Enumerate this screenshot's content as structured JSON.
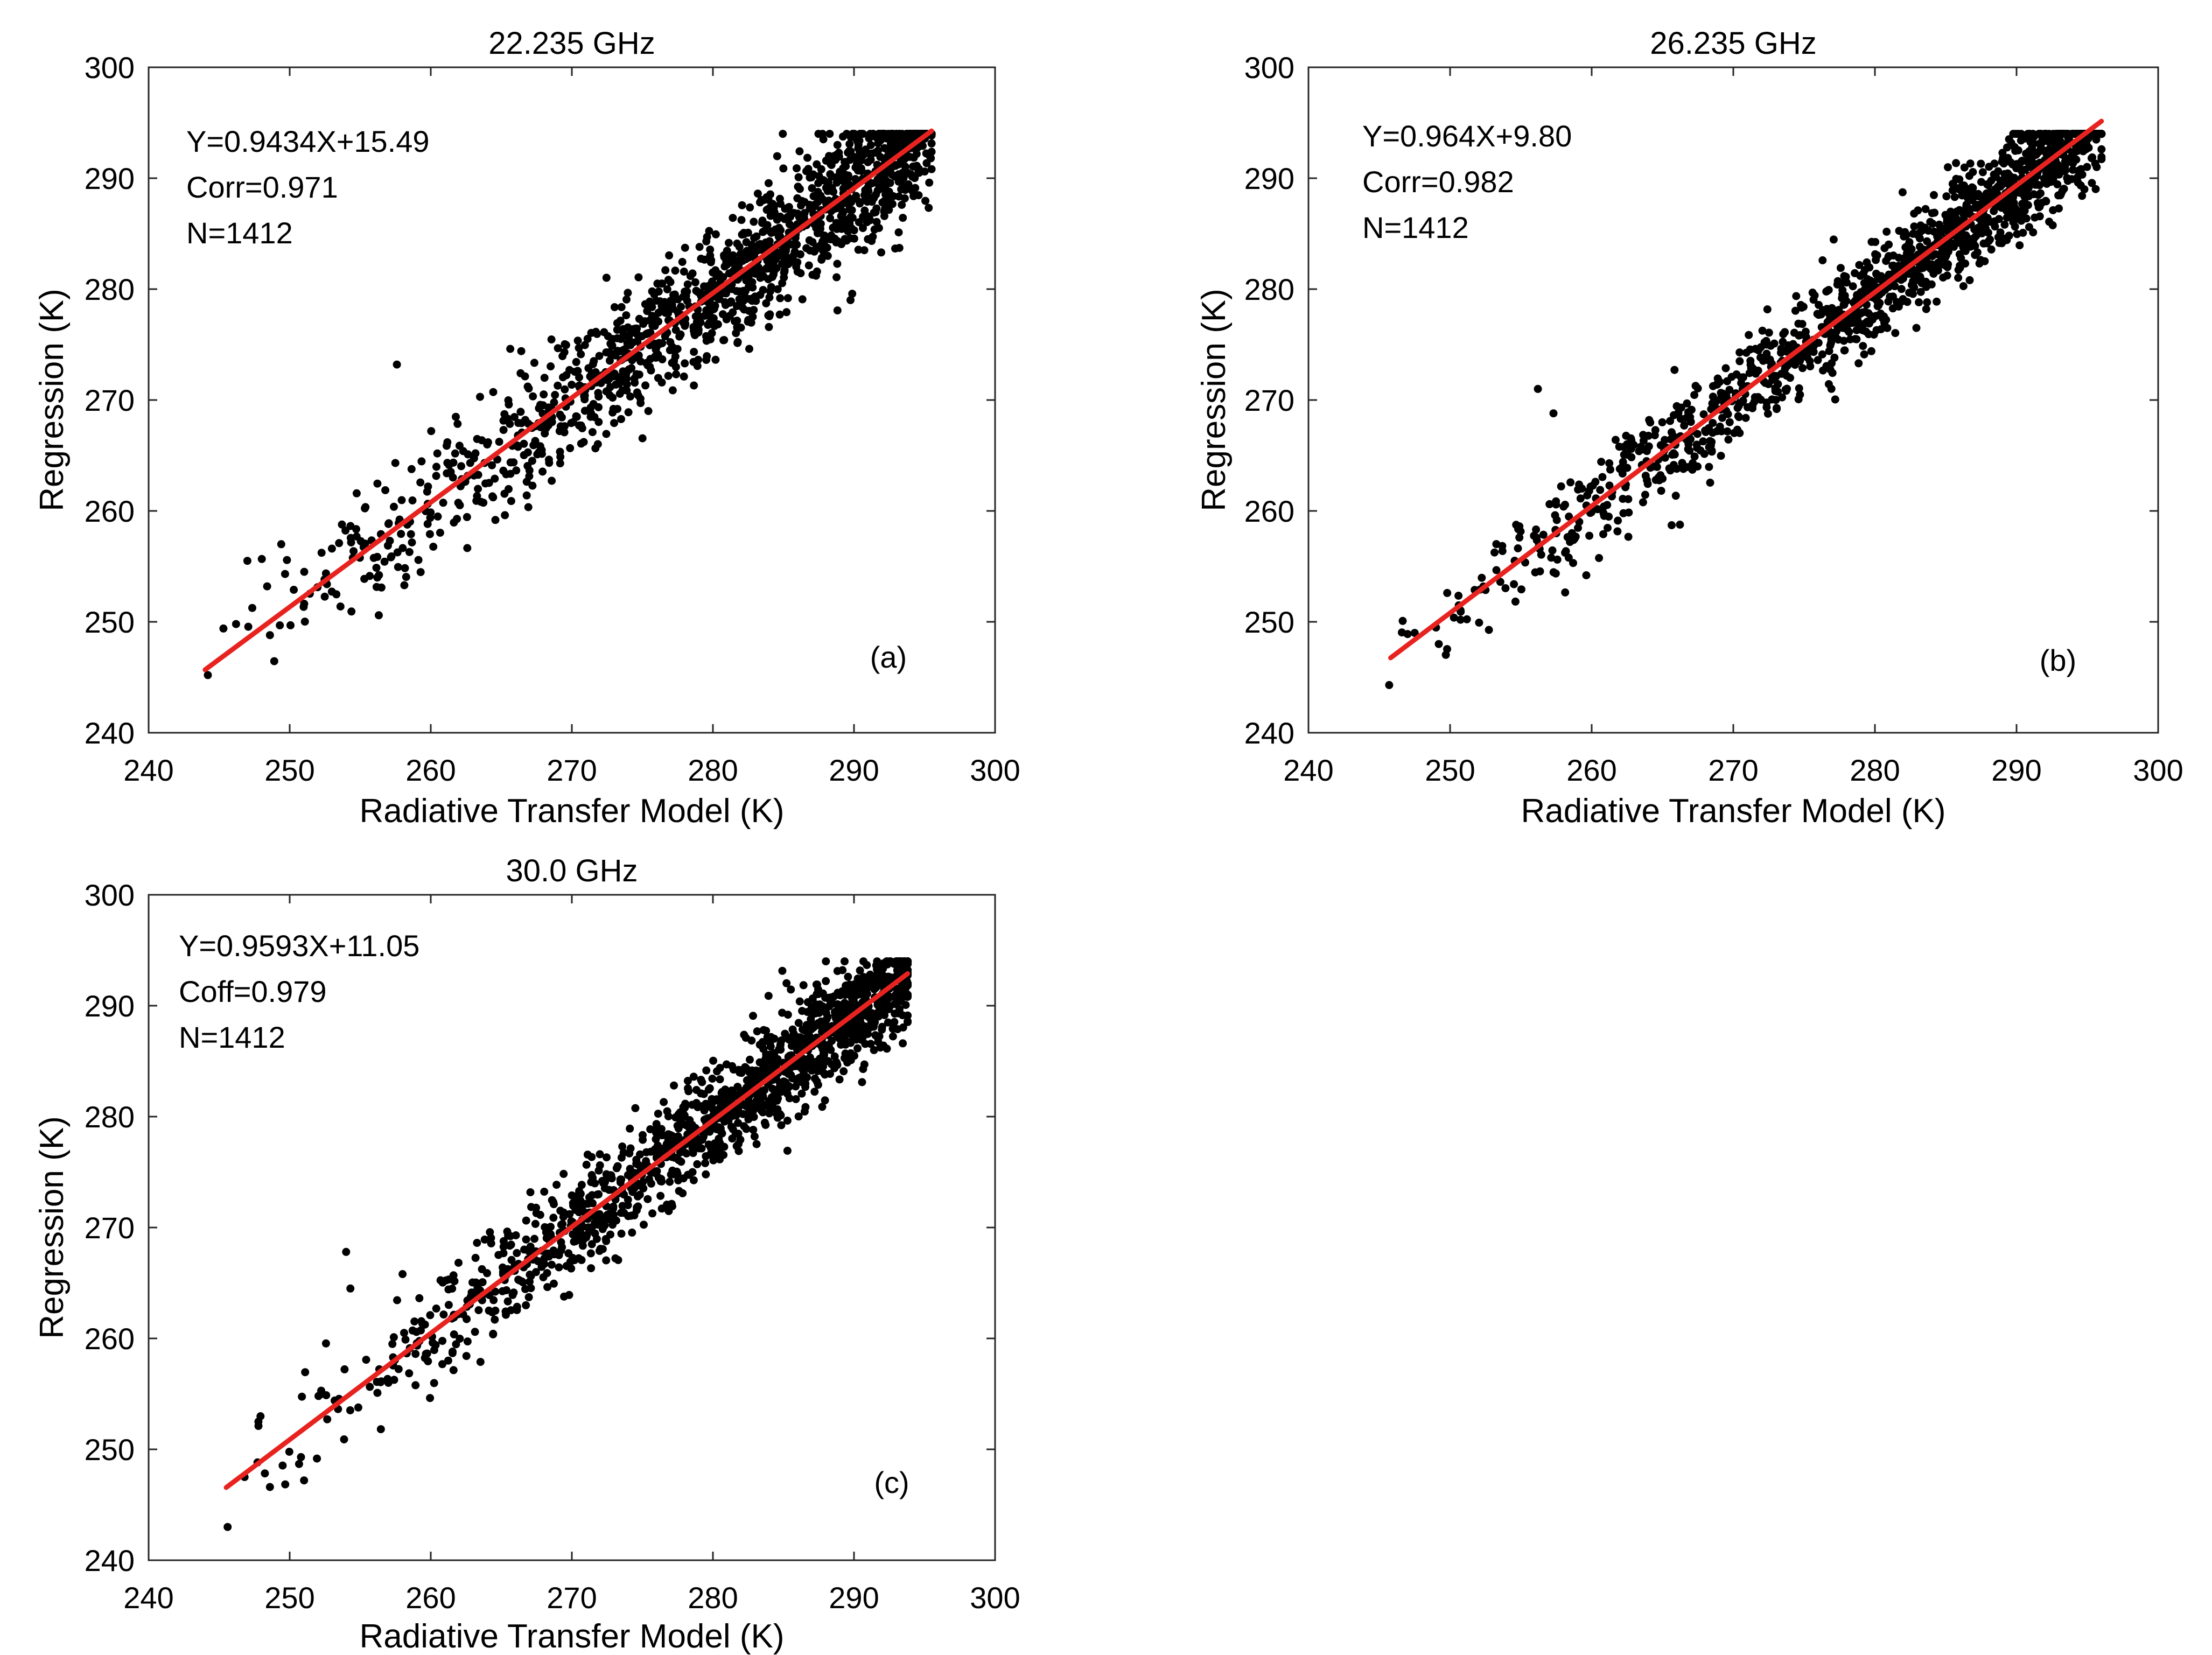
{
  "figure": {
    "background": "#ffffff",
    "point_color": "#000000",
    "fit_color": "#e8231f"
  },
  "chart_data": [
    {
      "type": "scatter",
      "title": "22.235 GHz",
      "panel_label": "(a)",
      "xlabel": "Radiative Transfer Model (K)",
      "ylabel": "Regression (K)",
      "xlim": [
        240,
        300
      ],
      "ylim": [
        240,
        300
      ],
      "xticks": [
        "240",
        "250",
        "260",
        "270",
        "280",
        "290",
        "300"
      ],
      "yticks": [
        "240",
        "250",
        "260",
        "270",
        "280",
        "290",
        "300"
      ],
      "annotations": [
        "Y=0.9434X+15.49",
        "Corr=0.971",
        "N=1412"
      ],
      "fit": {
        "slope": 0.9434,
        "intercept": 15.49,
        "x_range": [
          244,
          295.5
        ]
      },
      "sample": {
        "n": 1412,
        "x_range": [
          244,
          295.5
        ],
        "scatter_sd": 3.0,
        "seed": 11
      },
      "outliers": [
        [
          244.2,
          245.2
        ],
        [
          245.3,
          249.4
        ],
        [
          246.2,
          249.8
        ],
        [
          247.0,
          255.5
        ],
        [
          248.6,
          248.8
        ],
        [
          248.4,
          253.2
        ],
        [
          249.4,
          257.0
        ],
        [
          257.6,
          273.2
        ],
        [
          266.8,
          261.4
        ]
      ]
    },
    {
      "type": "scatter",
      "title": "26.235 GHz",
      "panel_label": "(b)",
      "xlabel": "Radiative Transfer Model (K)",
      "ylabel": "Regression (K)",
      "xlim": [
        240,
        300
      ],
      "ylim": [
        240,
        300
      ],
      "xticks": [
        "240",
        "250",
        "260",
        "270",
        "280",
        "290",
        "300"
      ],
      "yticks": [
        "240",
        "250",
        "260",
        "270",
        "280",
        "290",
        "300"
      ],
      "annotations": [
        "Y=0.964X+9.80",
        "Corr=0.982",
        "N=1412"
      ],
      "fit": {
        "slope": 0.964,
        "intercept": 9.8,
        "x_range": [
          245.8,
          296
        ]
      },
      "sample": {
        "n": 1412,
        "x_range": [
          245.8,
          296
        ],
        "scatter_sd": 2.3,
        "seed": 22
      },
      "outliers": [
        [
          245.7,
          244.3
        ],
        [
          247.0,
          248.9
        ],
        [
          247.5,
          249.0
        ],
        [
          249.2,
          248.0
        ],
        [
          249.8,
          252.6
        ],
        [
          256.2,
          271.0
        ],
        [
          257.3,
          268.8
        ]
      ]
    },
    {
      "type": "scatter",
      "title": "30.0 GHz",
      "panel_label": "(c)",
      "xlabel": "Radiative Transfer Model (K)",
      "ylabel": "Regression (K)",
      "xlim": [
        240,
        300
      ],
      "ylim": [
        240,
        300
      ],
      "xticks": [
        "240",
        "250",
        "260",
        "270",
        "280",
        "290",
        "300"
      ],
      "yticks": [
        "240",
        "250",
        "260",
        "270",
        "280",
        "290",
        "300"
      ],
      "annotations": [
        "Y=0.9593X+11.05",
        "Coff=0.979",
        "N=1412"
      ],
      "fit": {
        "slope": 0.9593,
        "intercept": 11.05,
        "x_range": [
          245.5,
          293.8
        ]
      },
      "sample": {
        "n": 1412,
        "x_range": [
          245.5,
          293.8
        ],
        "scatter_sd": 2.3,
        "seed": 33
      },
      "outliers": [
        [
          245.6,
          243.0
        ],
        [
          246.8,
          247.5
        ],
        [
          248.6,
          246.6
        ],
        [
          250.8,
          249.3
        ],
        [
          254.0,
          267.8
        ],
        [
          254.3,
          264.5
        ],
        [
          258.0,
          265.8
        ]
      ]
    }
  ]
}
